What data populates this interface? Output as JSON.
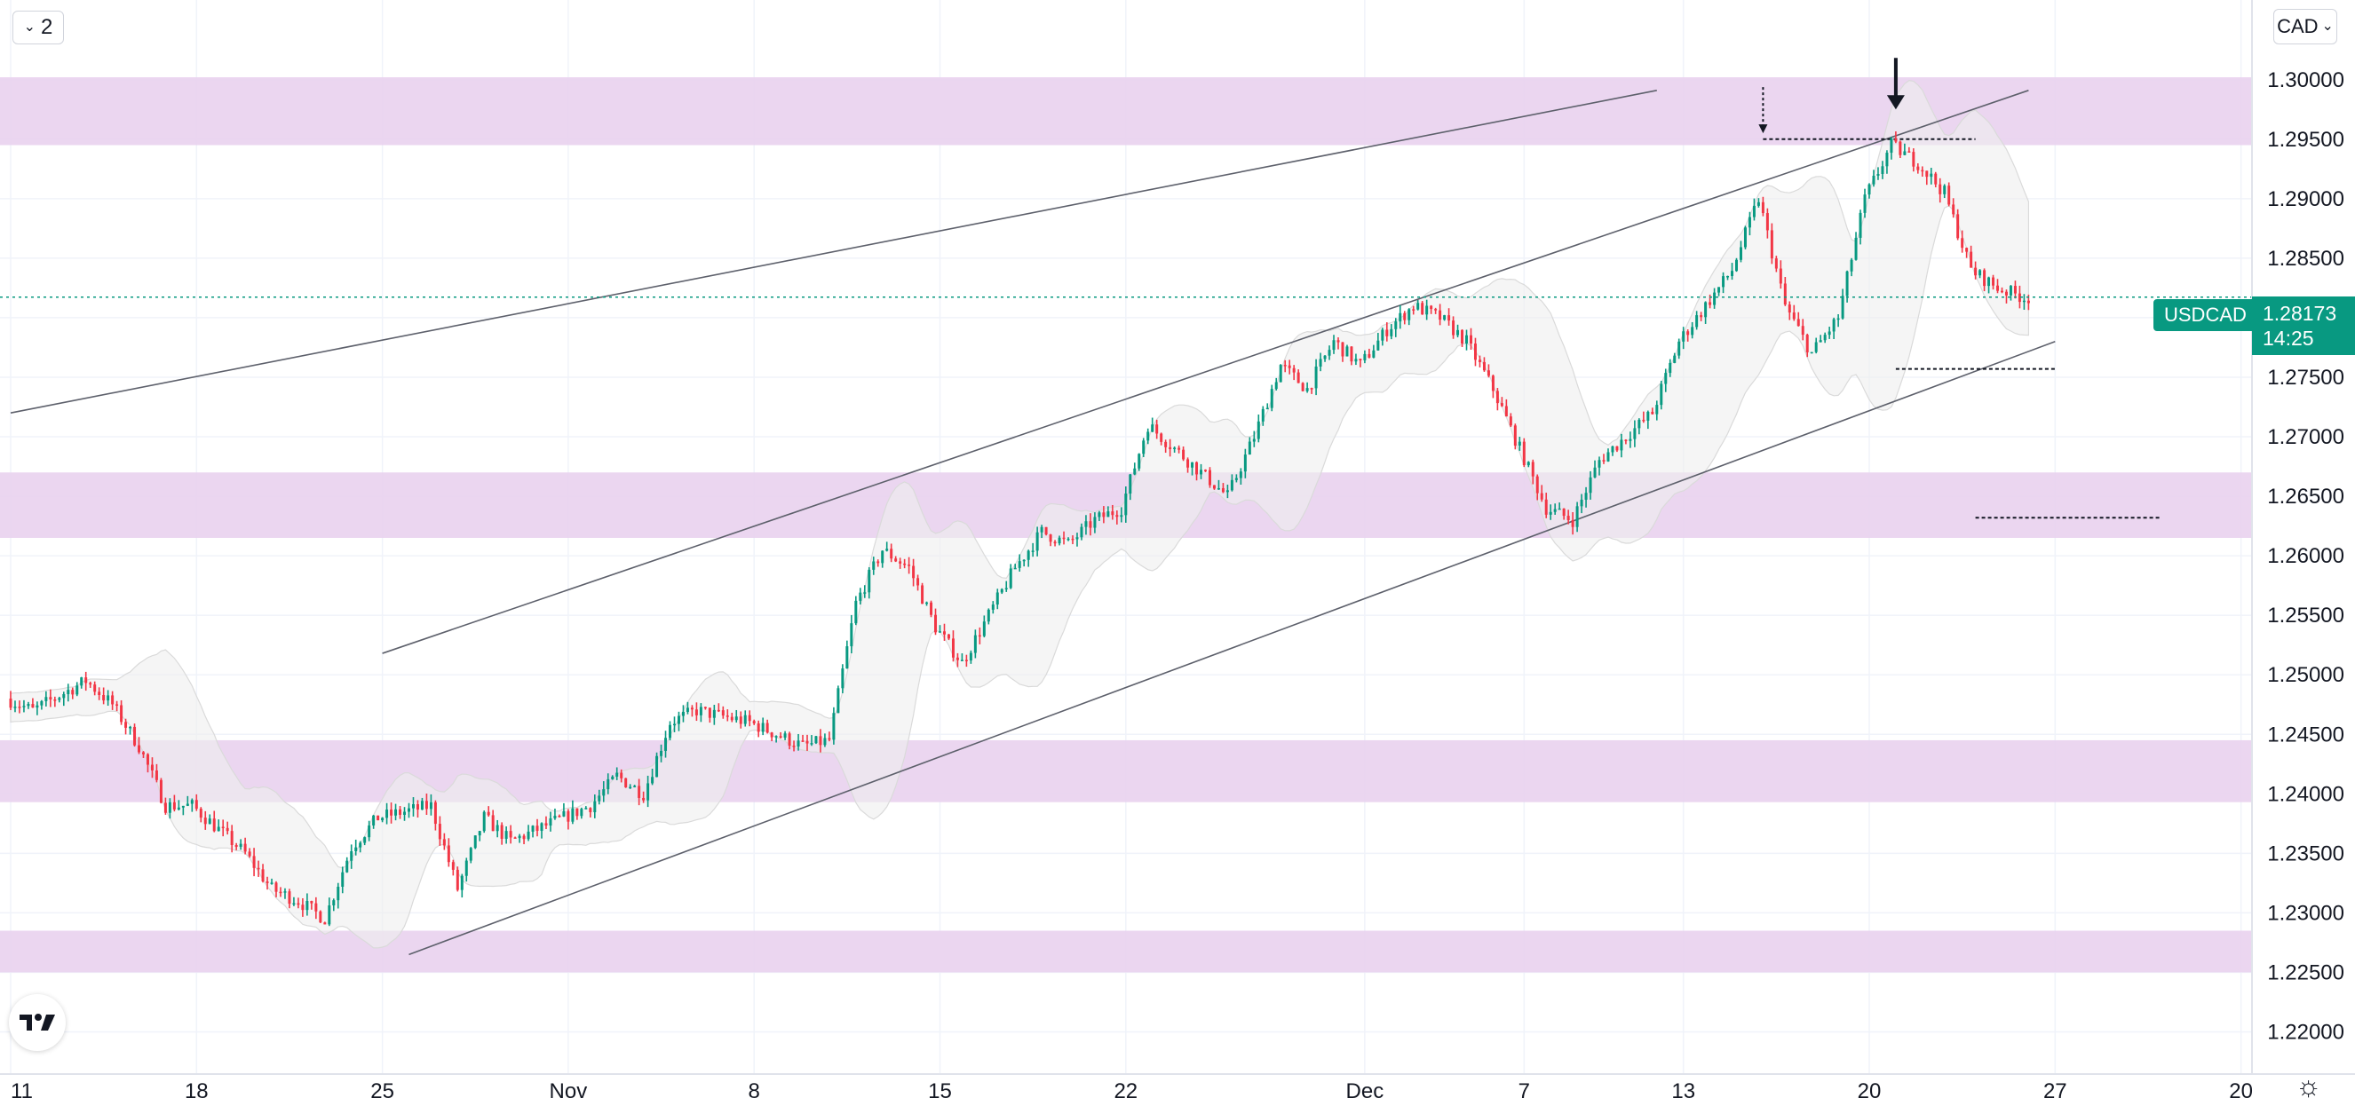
{
  "toolbar": {
    "layout_count": "2",
    "currency": "CAD"
  },
  "symbol_label": "USDCAD",
  "last_price_text": "1.28173",
  "countdown": "14:25",
  "icons": {
    "collapse": "chevron-down-icon",
    "logo": "tradingview-logo-icon",
    "settings": "gear-icon"
  },
  "colors": {
    "up": "#089981",
    "down": "#f23645",
    "zone": "#e9d2ee",
    "price_line": "#089981",
    "axis_text": "#131722"
  },
  "chart_data": {
    "type": "candlestick",
    "symbol": "USDCAD",
    "y_ticks": [
      "1.30000",
      "1.29500",
      "1.29000",
      "1.28500",
      "1.28000",
      "1.27500",
      "1.27000",
      "1.26500",
      "1.26000",
      "1.25500",
      "1.25000",
      "1.24500",
      "1.24000",
      "1.23500",
      "1.23000",
      "1.22500",
      "1.22000"
    ],
    "ylim": [
      1.2175,
      1.3055
    ],
    "x_ticks": [
      "11",
      "18",
      "25",
      "Nov",
      "8",
      "15",
      "22",
      "Dec",
      "7",
      "13",
      "20",
      "27",
      "20"
    ],
    "last_price": 1.28173,
    "grid": true,
    "zones": [
      {
        "from": 1.2945,
        "to": 1.3002
      },
      {
        "from": 1.2615,
        "to": 1.267
      },
      {
        "from": 1.2393,
        "to": 1.2445
      },
      {
        "from": 1.225,
        "to": 1.2285
      }
    ],
    "trendlines": [
      {
        "from": [
          "Oct 11",
          1.272
        ],
        "to": [
          "Dec 12",
          1.2991
        ]
      },
      {
        "from": [
          "Oct 25",
          1.2518
        ],
        "to": [
          "Dec 26",
          1.2991
        ]
      },
      {
        "from": [
          "Oct 26",
          1.2265
        ],
        "to": [
          "Dec 27",
          1.278
        ]
      }
    ],
    "levels": [
      {
        "price": 1.295,
        "from": "Dec 16",
        "to": "Dec 24"
      },
      {
        "price": 1.2757,
        "from": "Dec 21",
        "to": "Dec 27"
      },
      {
        "price": 1.2632,
        "from": "Dec 24",
        "to": "Dec 31"
      }
    ],
    "arrows": [
      {
        "date": "Dec 16",
        "style": "dashed",
        "tip": 1.2955
      },
      {
        "date": "Dec 21",
        "style": "solid",
        "tip": 1.2975
      }
    ],
    "price_path": [
      [
        "Oct 11",
        1.248
      ],
      [
        "Oct 12",
        1.247
      ],
      [
        "Oct 14",
        1.2495
      ],
      [
        "Oct 15",
        1.2475
      ],
      [
        "Oct 16",
        1.244
      ],
      [
        "Oct 17",
        1.239
      ],
      [
        "Oct 18",
        1.239
      ],
      [
        "Oct 20",
        1.235
      ],
      [
        "Oct 21",
        1.232
      ],
      [
        "Oct 22",
        1.231
      ],
      [
        "Oct 23",
        1.2295
      ],
      [
        "Oct 24",
        1.2355
      ],
      [
        "Oct 25",
        1.238
      ],
      [
        "Oct 26",
        1.2385
      ],
      [
        "Oct 27",
        1.239
      ],
      [
        "Oct 28",
        1.232
      ],
      [
        "Oct 29",
        1.238
      ],
      [
        "Oct 30",
        1.236
      ],
      [
        "Nov 1",
        1.238
      ],
      [
        "Nov 2",
        1.239
      ],
      [
        "Nov 3",
        1.2415
      ],
      [
        "Nov 4",
        1.24
      ],
      [
        "Nov 5",
        1.246
      ],
      [
        "Nov 6",
        1.247
      ],
      [
        "Nov 8",
        1.246
      ],
      [
        "Nov 9",
        1.245
      ],
      [
        "Nov 10",
        1.244
      ],
      [
        "Nov 11",
        1.2445
      ],
      [
        "Nov 12",
        1.256
      ],
      [
        "Nov 13",
        1.2605
      ],
      [
        "Nov 14",
        1.259
      ],
      [
        "Nov 15",
        1.254
      ],
      [
        "Nov 16",
        1.251
      ],
      [
        "Nov 17",
        1.255
      ],
      [
        "Nov 18",
        1.259
      ],
      [
        "Nov 19",
        1.262
      ],
      [
        "Nov 20",
        1.261
      ],
      [
        "Nov 21",
        1.263
      ],
      [
        "Nov 22",
        1.264
      ],
      [
        "Nov 23",
        1.271
      ],
      [
        "Nov 24",
        1.269
      ],
      [
        "Nov 25",
        1.267
      ],
      [
        "Nov 26",
        1.265
      ],
      [
        "Nov 27",
        1.27
      ],
      [
        "Nov 28",
        1.276
      ],
      [
        "Nov 29",
        1.274
      ],
      [
        "Nov 30",
        1.278
      ],
      [
        "Dec 1",
        1.276
      ],
      [
        "Dec 2",
        1.279
      ],
      [
        "Dec 3",
        1.281
      ],
      [
        "Dec 4",
        1.28
      ],
      [
        "Dec 5",
        1.278
      ],
      [
        "Dec 6",
        1.274
      ],
      [
        "Dec 7",
        1.269
      ],
      [
        "Dec 8",
        1.264
      ],
      [
        "Dec 9",
        1.263
      ],
      [
        "Dec 10",
        1.268
      ],
      [
        "Dec 11",
        1.27
      ],
      [
        "Dec 12",
        1.272
      ],
      [
        "Dec 13",
        1.278
      ],
      [
        "Dec 14",
        1.281
      ],
      [
        "Dec 15",
        1.284
      ],
      [
        "Dec 16",
        1.29
      ],
      [
        "Dec 17",
        1.281
      ],
      [
        "Dec 18",
        1.277
      ],
      [
        "Dec 19",
        1.28
      ],
      [
        "Dec 20",
        1.29
      ],
      [
        "Dec 21",
        1.2945
      ],
      [
        "Dec 22",
        1.293
      ],
      [
        "Dec 23",
        1.2905
      ],
      [
        "Dec 24",
        1.284
      ],
      [
        "Dec 25",
        1.2825
      ],
      [
        "Dec 26",
        1.2817
      ]
    ]
  }
}
